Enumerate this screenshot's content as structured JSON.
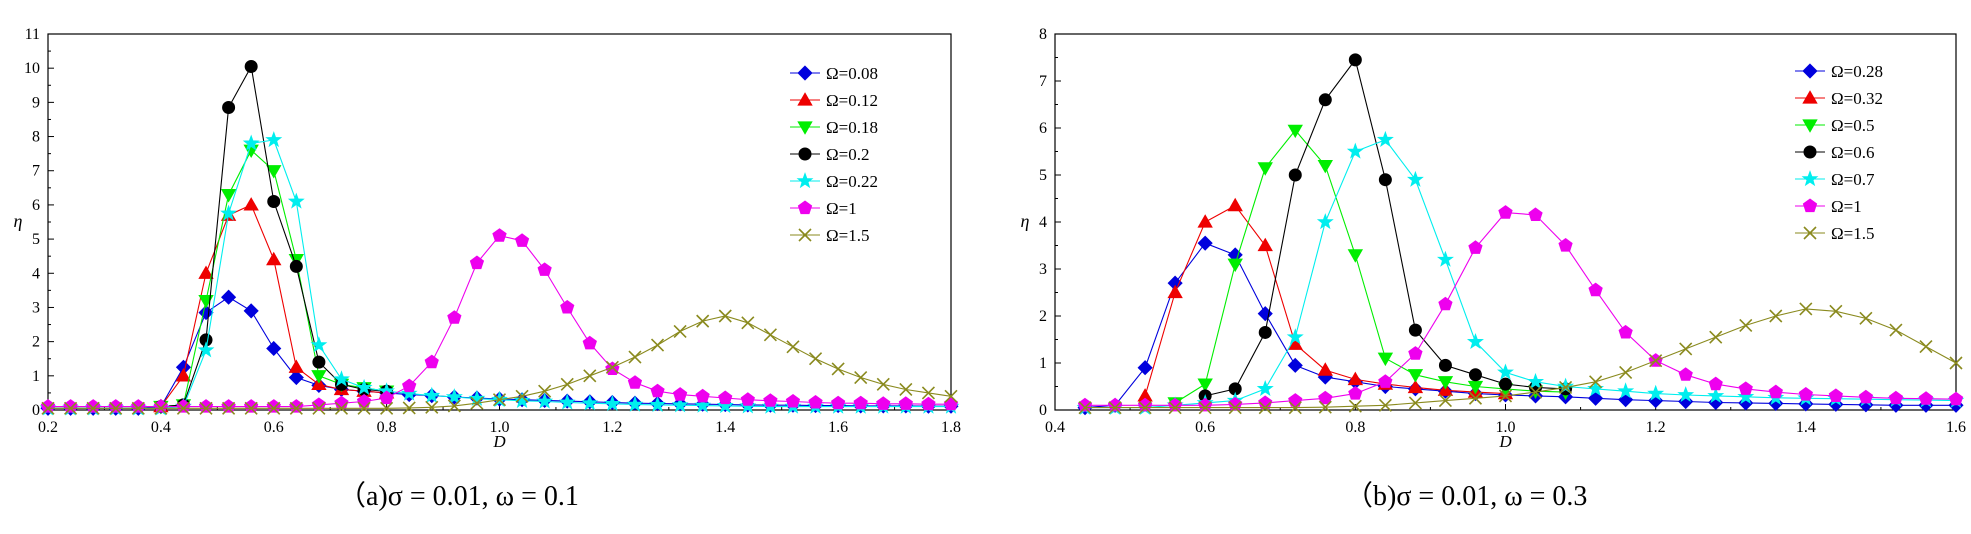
{
  "panels": [
    {
      "id": "a",
      "caption": "（a)σ = 0.01, ω = 0.1",
      "xlabel": "D",
      "ylabel": "η",
      "xlim": [
        0.2,
        1.8
      ],
      "ylim": [
        0,
        11
      ],
      "xticks": [
        "0.2",
        "0.4",
        "0.6",
        "0.8",
        "1.0",
        "1.2",
        "1.4",
        "1.6",
        "1.8"
      ],
      "yticks": [
        "0",
        "1",
        "2",
        "3",
        "4",
        "5",
        "6",
        "7",
        "8",
        "9",
        "10",
        "11"
      ],
      "legend_position": "top-right"
    },
    {
      "id": "b",
      "caption": "（b)σ = 0.01, ω = 0.3",
      "xlabel": "D",
      "ylabel": "η",
      "xlim": [
        0.4,
        1.6
      ],
      "ylim": [
        0,
        8
      ],
      "xticks": [
        "0.4",
        "0.6",
        "0.8",
        "1.0",
        "1.2",
        "1.4",
        "1.6"
      ],
      "yticks": [
        "0",
        "1",
        "2",
        "3",
        "4",
        "5",
        "6",
        "7",
        "8"
      ],
      "legend_position": "top-right"
    }
  ],
  "chart_data": [
    {
      "type": "line",
      "title": "",
      "xlabel": "D",
      "ylabel": "η",
      "xlim": [
        0.2,
        1.8
      ],
      "ylim": [
        0,
        11
      ],
      "grid": false,
      "legend": "top-right",
      "series": [
        {
          "name": "Ω=0.08",
          "color": "#0000dd",
          "marker": "diamond",
          "x": [
            0.2,
            0.24,
            0.28,
            0.32,
            0.36,
            0.4,
            0.44,
            0.48,
            0.52,
            0.56,
            0.6,
            0.64,
            0.68,
            0.72,
            0.76,
            0.8,
            0.84,
            0.88,
            0.92,
            0.96,
            1.0,
            1.04,
            1.08,
            1.12,
            1.16,
            1.2,
            1.24,
            1.28,
            1.32,
            1.36,
            1.4,
            1.44,
            1.48,
            1.52,
            1.56,
            1.6,
            1.64,
            1.68,
            1.72,
            1.76,
            1.8
          ],
          "y": [
            0.05,
            0.05,
            0.05,
            0.05,
            0.05,
            0.1,
            1.25,
            2.85,
            3.3,
            2.9,
            1.8,
            0.95,
            0.72,
            0.6,
            0.55,
            0.5,
            0.45,
            0.42,
            0.38,
            0.35,
            0.32,
            0.3,
            0.28,
            0.26,
            0.24,
            0.22,
            0.2,
            0.19,
            0.18,
            0.17,
            0.16,
            0.15,
            0.14,
            0.14,
            0.13,
            0.13,
            0.12,
            0.12,
            0.12,
            0.11,
            0.11
          ]
        },
        {
          "name": "Ω=0.12",
          "color": "#ee0000",
          "marker": "triangle-up",
          "x": [
            0.4,
            0.44,
            0.48,
            0.52,
            0.56,
            0.6,
            0.64,
            0.68,
            0.72,
            0.76,
            0.8
          ],
          "y": [
            0.1,
            1.0,
            4.0,
            5.7,
            6.0,
            4.4,
            1.25,
            0.75,
            0.6,
            0.55,
            0.5
          ]
        },
        {
          "name": "Ω=0.18",
          "color": "#00ee00",
          "marker": "triangle-down",
          "x": [
            0.4,
            0.44,
            0.48,
            0.52,
            0.56,
            0.6,
            0.64,
            0.68,
            0.72,
            0.76,
            0.8
          ],
          "y": [
            0.1,
            0.15,
            3.2,
            6.3,
            7.6,
            7.0,
            4.4,
            1.0,
            0.75,
            0.65,
            0.55
          ]
        },
        {
          "name": "Ω=0.2",
          "color": "#000000",
          "marker": "circle",
          "x": [
            0.4,
            0.44,
            0.48,
            0.52,
            0.56,
            0.6,
            0.64,
            0.68,
            0.72,
            0.76,
            0.8
          ],
          "y": [
            0.1,
            0.15,
            2.05,
            8.85,
            10.05,
            6.1,
            4.2,
            1.4,
            0.75,
            0.6,
            0.55
          ]
        },
        {
          "name": "Ω=0.22",
          "color": "#00eeee",
          "marker": "star",
          "x": [
            0.2,
            0.24,
            0.28,
            0.32,
            0.36,
            0.4,
            0.44,
            0.48,
            0.52,
            0.56,
            0.6,
            0.64,
            0.68,
            0.72,
            0.76,
            0.8,
            0.84,
            0.88,
            0.92,
            0.96,
            1.0,
            1.04,
            1.08,
            1.12,
            1.16,
            1.2,
            1.24,
            1.28,
            1.32,
            1.36,
            1.4,
            1.44,
            1.48,
            1.52,
            1.56,
            1.6,
            1.64,
            1.68,
            1.72,
            1.76,
            1.8
          ],
          "y": [
            0.05,
            0.05,
            0.05,
            0.05,
            0.05,
            0.05,
            0.1,
            1.75,
            5.75,
            7.8,
            7.9,
            6.1,
            1.9,
            0.9,
            0.65,
            0.55,
            0.48,
            0.42,
            0.38,
            0.33,
            0.3,
            0.27,
            0.25,
            0.22,
            0.2,
            0.18,
            0.16,
            0.15,
            0.14,
            0.13,
            0.12,
            0.11,
            0.1,
            0.1,
            0.1,
            0.1,
            0.1,
            0.1,
            0.1,
            0.1,
            0.1
          ]
        },
        {
          "name": "Ω=1",
          "color": "#ee00ee",
          "marker": "pentagon",
          "x": [
            0.2,
            0.24,
            0.28,
            0.32,
            0.36,
            0.4,
            0.44,
            0.48,
            0.52,
            0.56,
            0.6,
            0.64,
            0.68,
            0.72,
            0.76,
            0.8,
            0.84,
            0.88,
            0.92,
            0.96,
            1.0,
            1.04,
            1.08,
            1.12,
            1.16,
            1.2,
            1.24,
            1.28,
            1.32,
            1.36,
            1.4,
            1.44,
            1.48,
            1.52,
            1.56,
            1.6,
            1.64,
            1.68,
            1.72,
            1.76,
            1.8
          ],
          "y": [
            0.1,
            0.1,
            0.1,
            0.1,
            0.1,
            0.1,
            0.1,
            0.1,
            0.1,
            0.1,
            0.1,
            0.1,
            0.15,
            0.2,
            0.25,
            0.35,
            0.7,
            1.4,
            2.7,
            4.3,
            5.1,
            4.95,
            4.1,
            3.0,
            1.95,
            1.2,
            0.8,
            0.55,
            0.45,
            0.4,
            0.35,
            0.3,
            0.27,
            0.25,
            0.22,
            0.2,
            0.2,
            0.18,
            0.18,
            0.17,
            0.17
          ]
        },
        {
          "name": "Ω=1.5",
          "color": "#8a8a1e",
          "marker": "x",
          "x": [
            0.2,
            0.24,
            0.28,
            0.32,
            0.36,
            0.4,
            0.44,
            0.48,
            0.52,
            0.56,
            0.6,
            0.64,
            0.68,
            0.72,
            0.76,
            0.8,
            0.84,
            0.88,
            0.92,
            0.96,
            1.0,
            1.04,
            1.08,
            1.12,
            1.16,
            1.2,
            1.24,
            1.28,
            1.32,
            1.36,
            1.4,
            1.44,
            1.48,
            1.52,
            1.56,
            1.6,
            1.64,
            1.68,
            1.72,
            1.76,
            1.8
          ],
          "y": [
            0.05,
            0.05,
            0.05,
            0.05,
            0.05,
            0.05,
            0.05,
            0.05,
            0.05,
            0.05,
            0.05,
            0.05,
            0.05,
            0.05,
            0.05,
            0.05,
            0.06,
            0.08,
            0.12,
            0.2,
            0.3,
            0.4,
            0.55,
            0.75,
            1.0,
            1.25,
            1.55,
            1.9,
            2.3,
            2.6,
            2.75,
            2.55,
            2.2,
            1.85,
            1.5,
            1.2,
            0.95,
            0.75,
            0.6,
            0.5,
            0.4
          ]
        }
      ]
    },
    {
      "type": "line",
      "title": "",
      "xlabel": "D",
      "ylabel": "η",
      "xlim": [
        0.4,
        1.6
      ],
      "ylim": [
        0,
        8
      ],
      "grid": false,
      "legend": "top-right",
      "series": [
        {
          "name": "Ω=0.28",
          "color": "#0000dd",
          "marker": "diamond",
          "x": [
            0.44,
            0.48,
            0.52,
            0.56,
            0.6,
            0.64,
            0.68,
            0.72,
            0.76,
            0.8,
            0.84,
            0.88,
            0.92,
            0.96,
            1.0,
            1.04,
            1.08,
            1.12,
            1.16,
            1.2,
            1.24,
            1.28,
            1.32,
            1.36,
            1.4,
            1.44,
            1.48,
            1.52,
            1.56,
            1.6
          ],
          "y": [
            0.05,
            0.1,
            0.9,
            2.7,
            3.55,
            3.3,
            2.05,
            0.95,
            0.7,
            0.6,
            0.5,
            0.45,
            0.4,
            0.35,
            0.32,
            0.3,
            0.28,
            0.25,
            0.22,
            0.2,
            0.18,
            0.16,
            0.15,
            0.14,
            0.13,
            0.12,
            0.11,
            0.1,
            0.1,
            0.1
          ]
        },
        {
          "name": "Ω=0.32",
          "color": "#ee0000",
          "marker": "triangle-up",
          "x": [
            0.52,
            0.56,
            0.6,
            0.64,
            0.68,
            0.72,
            0.76,
            0.8,
            0.84,
            0.88,
            0.92,
            0.96,
            1.0
          ],
          "y": [
            0.3,
            2.5,
            4.0,
            4.35,
            3.5,
            1.4,
            0.85,
            0.65,
            0.55,
            0.48,
            0.42,
            0.38,
            0.35
          ]
        },
        {
          "name": "Ω=0.5",
          "color": "#00ee00",
          "marker": "triangle-down",
          "x": [
            0.56,
            0.6,
            0.64,
            0.68,
            0.72,
            0.76,
            0.8,
            0.84,
            0.88,
            0.92,
            0.96,
            1.0,
            1.04,
            1.08
          ],
          "y": [
            0.15,
            0.55,
            3.1,
            5.15,
            5.95,
            5.2,
            3.3,
            1.1,
            0.75,
            0.6,
            0.5,
            0.45,
            0.4,
            0.38
          ]
        },
        {
          "name": "Ω=0.6",
          "color": "#000000",
          "marker": "circle",
          "x": [
            0.6,
            0.64,
            0.68,
            0.72,
            0.76,
            0.8,
            0.84,
            0.88,
            0.92,
            0.96,
            1.0,
            1.04,
            1.08
          ],
          "y": [
            0.3,
            0.45,
            1.65,
            5.0,
            6.6,
            7.45,
            4.9,
            1.7,
            0.95,
            0.75,
            0.55,
            0.48,
            0.45
          ]
        },
        {
          "name": "Ω=0.7",
          "color": "#00eeee",
          "marker": "star",
          "x": [
            0.44,
            0.48,
            0.52,
            0.56,
            0.6,
            0.64,
            0.68,
            0.72,
            0.76,
            0.8,
            0.84,
            0.88,
            0.92,
            0.96,
            1.0,
            1.04,
            1.08,
            1.12,
            1.16,
            1.2,
            1.24,
            1.28,
            1.32,
            1.36,
            1.4,
            1.44,
            1.48,
            1.52,
            1.56,
            1.6
          ],
          "y": [
            0.05,
            0.05,
            0.05,
            0.1,
            0.15,
            0.2,
            0.45,
            1.55,
            4.0,
            5.5,
            5.75,
            4.9,
            3.2,
            1.45,
            0.8,
            0.6,
            0.5,
            0.45,
            0.4,
            0.35,
            0.32,
            0.3,
            0.28,
            0.26,
            0.25,
            0.24,
            0.23,
            0.22,
            0.21,
            0.2
          ]
        },
        {
          "name": "Ω=1",
          "color": "#ee00ee",
          "marker": "pentagon",
          "x": [
            0.44,
            0.48,
            0.52,
            0.56,
            0.6,
            0.64,
            0.68,
            0.72,
            0.76,
            0.8,
            0.84,
            0.88,
            0.92,
            0.96,
            1.0,
            1.04,
            1.08,
            1.12,
            1.16,
            1.2,
            1.24,
            1.28,
            1.32,
            1.36,
            1.4,
            1.44,
            1.48,
            1.52,
            1.56,
            1.6
          ],
          "y": [
            0.1,
            0.1,
            0.1,
            0.1,
            0.1,
            0.12,
            0.15,
            0.2,
            0.25,
            0.35,
            0.6,
            1.2,
            2.25,
            3.45,
            4.2,
            4.15,
            3.5,
            2.55,
            1.65,
            1.05,
            0.75,
            0.55,
            0.45,
            0.38,
            0.33,
            0.3,
            0.27,
            0.25,
            0.24,
            0.23
          ]
        },
        {
          "name": "Ω=1.5",
          "color": "#8a8a1e",
          "marker": "x",
          "x": [
            0.44,
            0.48,
            0.52,
            0.56,
            0.6,
            0.64,
            0.68,
            0.72,
            0.76,
            0.8,
            0.84,
            0.88,
            0.92,
            0.96,
            1.0,
            1.04,
            1.08,
            1.12,
            1.16,
            1.2,
            1.24,
            1.28,
            1.32,
            1.36,
            1.4,
            1.44,
            1.48,
            1.52,
            1.56,
            1.6
          ],
          "y": [
            0.05,
            0.05,
            0.05,
            0.05,
            0.05,
            0.05,
            0.05,
            0.05,
            0.06,
            0.08,
            0.1,
            0.15,
            0.2,
            0.25,
            0.3,
            0.38,
            0.48,
            0.6,
            0.8,
            1.05,
            1.3,
            1.55,
            1.8,
            2.0,
            2.15,
            2.1,
            1.95,
            1.7,
            1.35,
            1.0
          ]
        }
      ]
    }
  ]
}
